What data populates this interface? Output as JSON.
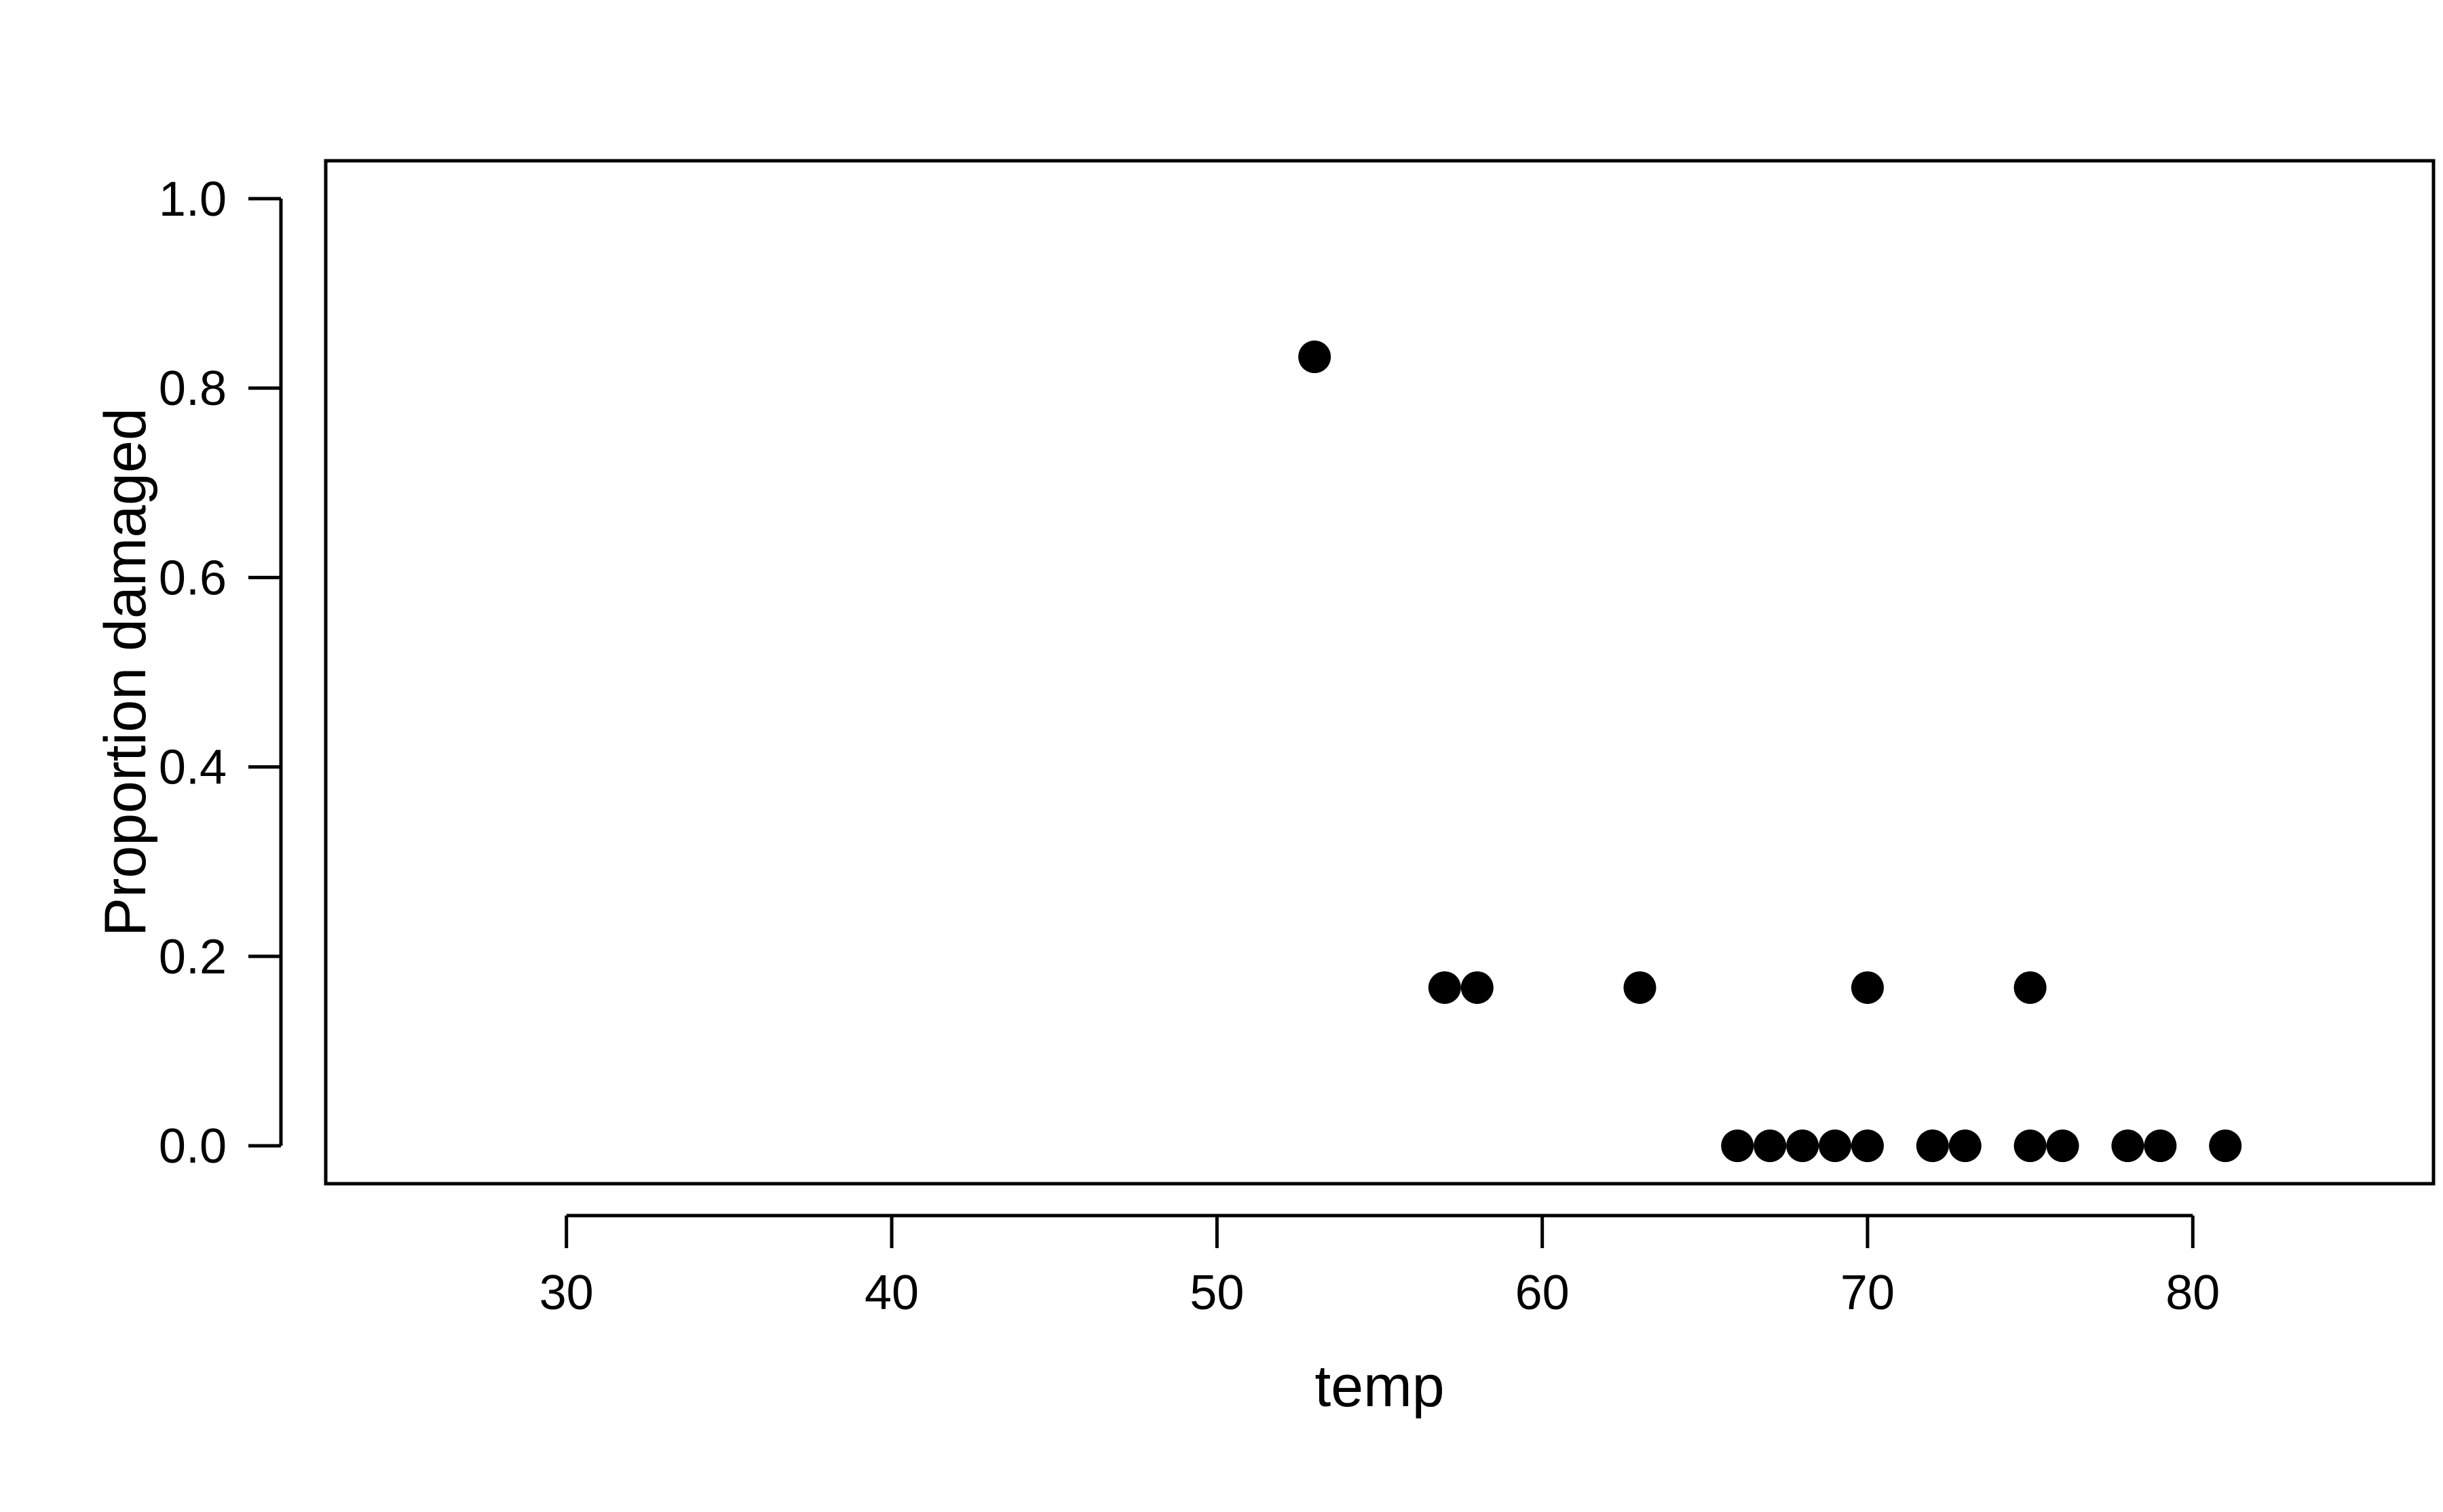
{
  "chart_data": {
    "type": "scatter",
    "title": "",
    "xlabel": "temp",
    "ylabel": "Proportion damaged",
    "xlim": [
      22.6,
      87.4
    ],
    "ylim": [
      -0.04,
      1.04
    ],
    "x_ticks": [
      30,
      40,
      50,
      60,
      70,
      80
    ],
    "x_tick_labels": [
      "30",
      "40",
      "50",
      "60",
      "70",
      "80"
    ],
    "y_ticks": [
      0,
      0.2,
      0.4,
      0.6,
      0.8,
      1.0
    ],
    "y_tick_labels": [
      "0.0",
      "0.2",
      "0.4",
      "0.6",
      "0.8",
      "1.0"
    ],
    "grid": false,
    "legend": "none",
    "marker_color": "#000000",
    "points": [
      {
        "x": 53,
        "y": 0.833
      },
      {
        "x": 57,
        "y": 0.167
      },
      {
        "x": 58,
        "y": 0.167
      },
      {
        "x": 63,
        "y": 0.167
      },
      {
        "x": 66,
        "y": 0
      },
      {
        "x": 67,
        "y": 0
      },
      {
        "x": 68,
        "y": 0
      },
      {
        "x": 69,
        "y": 0
      },
      {
        "x": 70,
        "y": 0.167
      },
      {
        "x": 70,
        "y": 0
      },
      {
        "x": 72,
        "y": 0
      },
      {
        "x": 73,
        "y": 0
      },
      {
        "x": 75,
        "y": 0.167
      },
      {
        "x": 75,
        "y": 0
      },
      {
        "x": 76,
        "y": 0
      },
      {
        "x": 78,
        "y": 0
      },
      {
        "x": 79,
        "y": 0
      },
      {
        "x": 81,
        "y": 0
      }
    ]
  }
}
